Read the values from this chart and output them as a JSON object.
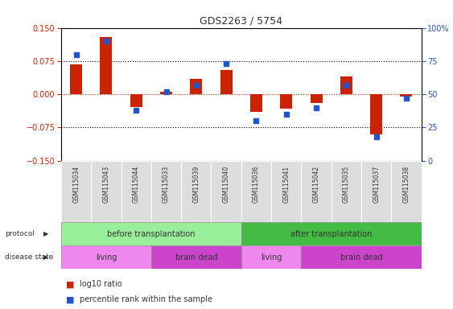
{
  "title": "GDS2263 / 5754",
  "samples": [
    "GSM115034",
    "GSM115043",
    "GSM115044",
    "GSM115033",
    "GSM115039",
    "GSM115040",
    "GSM115036",
    "GSM115041",
    "GSM115042",
    "GSM115035",
    "GSM115037",
    "GSM115038"
  ],
  "log10_ratio": [
    0.068,
    0.13,
    -0.028,
    0.005,
    0.035,
    0.055,
    -0.04,
    -0.032,
    -0.02,
    0.04,
    -0.09,
    -0.005
  ],
  "percentile_rank": [
    80,
    90,
    38,
    52,
    57,
    73,
    30,
    35,
    40,
    57,
    18,
    47
  ],
  "ylim_left": [
    -0.15,
    0.15
  ],
  "ylim_right": [
    0,
    100
  ],
  "yticks_left": [
    -0.15,
    -0.075,
    0,
    0.075,
    0.15
  ],
  "yticks_right": [
    0,
    25,
    50,
    75,
    100
  ],
  "bar_color": "#cc2200",
  "dot_color": "#2255cc",
  "zero_line_color": "#cc2200",
  "dotted_line_color": "#333333",
  "sample_box_color": "#dddddd",
  "protocol_before_color": "#99ee99",
  "protocol_after_color": "#44bb44",
  "protocol_before_label": "before transplantation",
  "protocol_after_label": "after transplantation",
  "living_color": "#ee88ee",
  "brain_dead_color": "#cc44cc",
  "living_label": "living",
  "brain_dead_label": "brain dead",
  "legend_ratio_label": "log10 ratio",
  "legend_rank_label": "percentile rank within the sample"
}
